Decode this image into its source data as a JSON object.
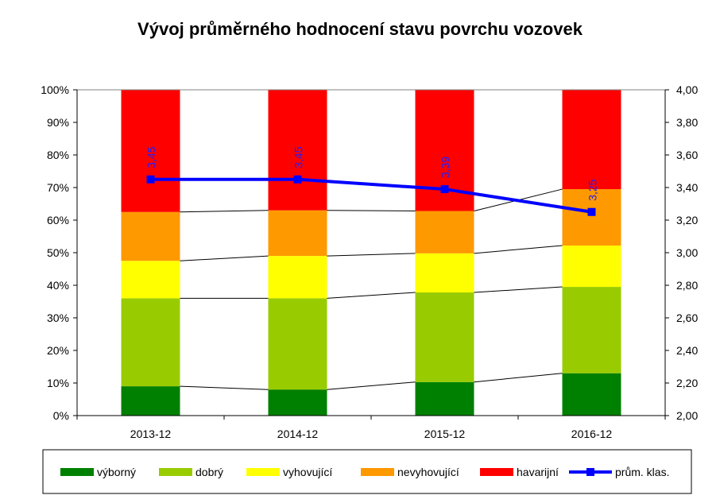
{
  "chart_data": {
    "type": "bar",
    "stacked": true,
    "title": "Vývoj průměrného hodnocení stavu povrchu vozovek",
    "categories": [
      "2013-12",
      "2014-12",
      "2015-12",
      "2016-12"
    ],
    "y_ticks": [
      "0%",
      "10%",
      "20%",
      "30%",
      "40%",
      "50%",
      "60%",
      "70%",
      "80%",
      "90%",
      "100%"
    ],
    "y2_ticks": [
      "2,00",
      "2,20",
      "2,40",
      "2,60",
      "2,80",
      "3,00",
      "3,20",
      "3,40",
      "3,60",
      "3,80",
      "4,00"
    ],
    "ylim": [
      0,
      100
    ],
    "y2lim": [
      2.0,
      4.0
    ],
    "grid": false,
    "legend_position": "bottom",
    "series": [
      {
        "name": "výborný",
        "color": "#008000",
        "values": [
          9,
          8,
          10.3,
          13
        ]
      },
      {
        "name": "dobrý",
        "color": "#99cc00",
        "values": [
          27,
          28,
          27.5,
          26.5
        ]
      },
      {
        "name": "vyhovující",
        "color": "#ffff00",
        "values": [
          11.5,
          13,
          12,
          12.7
        ]
      },
      {
        "name": "nevyhovující",
        "color": "#ff9900",
        "values": [
          15,
          14,
          13,
          17.3
        ]
      },
      {
        "name": "havarijní",
        "color": "#ff0000",
        "values": [
          37.5,
          37,
          37.2,
          30.5
        ]
      }
    ],
    "line_series": {
      "name": "prům. klas.",
      "color": "#0000ff",
      "axis": "right",
      "values": [
        3.45,
        3.45,
        3.39,
        3.25
      ],
      "labels": [
        "3,45",
        "3,45",
        "3,39",
        "3,25"
      ]
    }
  }
}
